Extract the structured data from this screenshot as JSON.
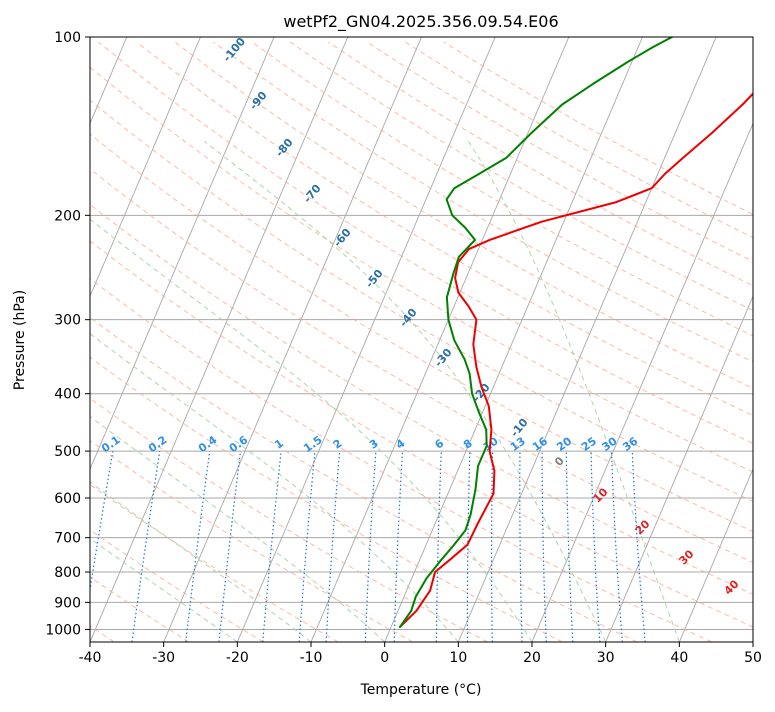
{
  "chart_data": {
    "type": "line",
    "title": "wetPf2_GN04.2025.356.09.54.E06",
    "xlabel": "Temperature (°C)",
    "ylabel": "Pressure (hPa)",
    "xlim": [
      -40,
      50
    ],
    "ylim": [
      1050,
      100
    ],
    "y_scale": "log",
    "x_ticks": [
      -40,
      -30,
      -20,
      -10,
      0,
      10,
      20,
      30,
      40,
      50
    ],
    "y_ticks": [
      100,
      200,
      300,
      400,
      500,
      600,
      700,
      800,
      900,
      1000
    ],
    "grid": "horizontal at y ticks",
    "series": [
      {
        "name": "Temperature",
        "color": "#ee0000",
        "points": [
          [
            1.2,
            990
          ],
          [
            2.5,
            930
          ],
          [
            3.2,
            860
          ],
          [
            2.8,
            800
          ],
          [
            4.2,
            760
          ],
          [
            5.6,
            720
          ],
          [
            5.8,
            660
          ],
          [
            6.2,
            590
          ],
          [
            5.0,
            540
          ],
          [
            3.2,
            500
          ],
          [
            2.2,
            460
          ],
          [
            0.5,
            420
          ],
          [
            -1.6,
            390
          ],
          [
            -3.5,
            360
          ],
          [
            -5.2,
            330
          ],
          [
            -6.2,
            300
          ],
          [
            -8.0,
            285
          ],
          [
            -10.2,
            270
          ],
          [
            -11.5,
            255
          ],
          [
            -12.0,
            240
          ],
          [
            -11.3,
            228
          ],
          [
            -9.0,
            220
          ],
          [
            -3.0,
            205
          ],
          [
            6.0,
            190
          ],
          [
            10.0,
            180
          ],
          [
            11.0,
            170
          ],
          [
            12.5,
            160
          ],
          [
            15.0,
            145
          ],
          [
            17.5,
            130
          ],
          [
            19.0,
            120
          ],
          [
            20.0,
            115
          ],
          [
            22.0,
            110
          ],
          [
            24.0,
            105
          ],
          [
            25.5,
            100
          ]
        ]
      },
      {
        "name": "Dewpoint",
        "color": "#008000",
        "points": [
          [
            1.2,
            990
          ],
          [
            1.8,
            930
          ],
          [
            1.6,
            880
          ],
          [
            2.0,
            820
          ],
          [
            2.8,
            770
          ],
          [
            3.8,
            720
          ],
          [
            4.5,
            680
          ],
          [
            4.3,
            640
          ],
          [
            3.5,
            580
          ],
          [
            2.5,
            530
          ],
          [
            2.5,
            490
          ],
          [
            1.5,
            460
          ],
          [
            -0.5,
            430
          ],
          [
            -2.5,
            400
          ],
          [
            -4.0,
            370
          ],
          [
            -5.5,
            350
          ],
          [
            -8.0,
            325
          ],
          [
            -10.0,
            300
          ],
          [
            -11.5,
            275
          ],
          [
            -12.0,
            250
          ],
          [
            -12.2,
            235
          ],
          [
            -11.0,
            220
          ],
          [
            -13.0,
            210
          ],
          [
            -15.5,
            200
          ],
          [
            -17.2,
            188
          ],
          [
            -16.8,
            180
          ],
          [
            -14.2,
            170
          ],
          [
            -11.5,
            160
          ],
          [
            -9.5,
            145
          ],
          [
            -7.0,
            130
          ],
          [
            -4.0,
            120
          ],
          [
            -0.5,
            110
          ],
          [
            2.0,
            104
          ],
          [
            4.0,
            100
          ]
        ]
      }
    ],
    "dry_adiabat_labels": [
      "-100",
      "-90",
      "-80",
      "-70",
      "-60",
      "-50",
      "-40",
      "-30",
      "-20",
      "-10",
      "0",
      "10",
      "20",
      "30",
      "40"
    ],
    "mixing_ratio_labels": [
      "0.1",
      "0.2",
      "0.4",
      "0.6",
      "1",
      "1.5",
      "2",
      "3",
      "4",
      "6",
      "8",
      "10",
      "13",
      "16",
      "20",
      "25",
      "30",
      "36"
    ],
    "colors": {
      "temperature": "#ee0000",
      "dewpoint": "#008000",
      "isotherm": "#a8a8a8",
      "dry_adiabat": "#f5a58a",
      "moist_adiabat": "#9ccf9c",
      "mixing_ratio": "#1f77d4",
      "dry_label": "#2b6ea8",
      "mixing_label": "#2e90e8",
      "moist_label_zero": "#7f7f7f",
      "moist_label_warm": "#d62728"
    }
  }
}
